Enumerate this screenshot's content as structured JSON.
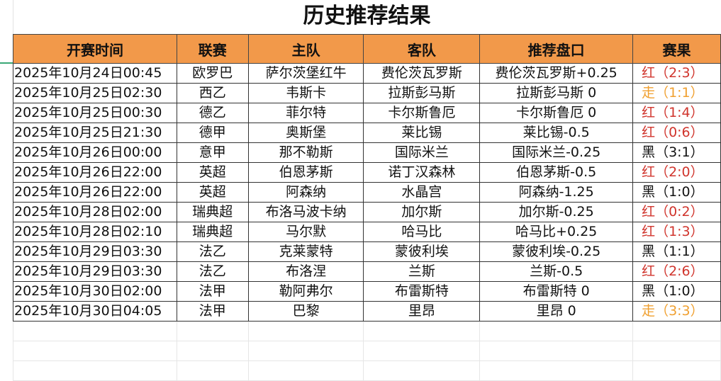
{
  "title": "历史推荐结果",
  "colors": {
    "header_bg": "#F2994A",
    "red": "#D0342C",
    "draw": "#F0A030",
    "black": "#111111"
  },
  "columns": [
    "开赛时间",
    "联赛",
    "主队",
    "客队",
    "推荐盘口",
    "赛果"
  ],
  "rows": [
    {
      "time": "2025年10月24日00:45",
      "league": "欧罗巴",
      "home": "萨尔茨堡红牛",
      "away": "费伦茨瓦罗斯",
      "pick": "费伦茨瓦罗斯+0.25",
      "result": "红（2:3）",
      "status": "red"
    },
    {
      "time": "2025年10月25日02:30",
      "league": "西乙",
      "home": "韦斯卡",
      "away": "拉斯彭马斯",
      "pick": "拉斯彭马斯 0",
      "result": "走（1:1）",
      "status": "draw"
    },
    {
      "time": "2025年10月25日00:30",
      "league": "德乙",
      "home": "菲尔特",
      "away": "卡尔斯鲁厄",
      "pick": "卡尔斯鲁厄 0",
      "result": "红（1:4）",
      "status": "red"
    },
    {
      "time": "2025年10月25日21:30",
      "league": "德甲",
      "home": "奥斯堡",
      "away": "莱比锡",
      "pick": "莱比锡-0.5",
      "result": "红（0:6）",
      "status": "red"
    },
    {
      "time": "2025年10月26日00:00",
      "league": "意甲",
      "home": "那不勒斯",
      "away": "国际米兰",
      "pick": "国际米兰-0.25",
      "result": "黑（3:1）",
      "status": "black"
    },
    {
      "time": "2025年10月26日22:00",
      "league": "英超",
      "home": "伯恩茅斯",
      "away": "诺丁汉森林",
      "pick": "伯恩茅斯-0.5",
      "result": "红（2:0）",
      "status": "red"
    },
    {
      "time": "2025年10月26日22:00",
      "league": "英超",
      "home": "阿森纳",
      "away": "水晶宫",
      "pick": "阿森纳-1.25",
      "result": "黑（1:0）",
      "status": "black"
    },
    {
      "time": "2025年10月28日02:00",
      "league": "瑞典超",
      "home": "布洛马波卡纳",
      "away": "加尔斯",
      "pick": "加尔斯-0.25",
      "result": "红（0:2）",
      "status": "red"
    },
    {
      "time": "2025年10月28日02:10",
      "league": "瑞典超",
      "home": "马尔默",
      "away": "哈马比",
      "pick": "哈马比+0.25",
      "result": "红（1:3）",
      "status": "red"
    },
    {
      "time": "2025年10月29日03:30",
      "league": "法乙",
      "home": "克莱蒙特",
      "away": "蒙彼利埃",
      "pick": "蒙彼利埃-0.25",
      "result": "黑（1:1）",
      "status": "black"
    },
    {
      "time": "2025年10月29日03:30",
      "league": "法乙",
      "home": "布洛涅",
      "away": "兰斯",
      "pick": "兰斯-0.5",
      "result": "红（2:6）",
      "status": "red"
    },
    {
      "time": "2025年10月30日02:00",
      "league": "法甲",
      "home": "勒阿弗尔",
      "away": "布雷斯特",
      "pick": "布雷斯特 0",
      "result": "黑（1:0）",
      "status": "black"
    },
    {
      "time": "2025年10月30日04:05",
      "league": "法甲",
      "home": "巴黎",
      "away": "里昂",
      "pick": "里昂 0",
      "result": "走（3:3）",
      "status": "draw"
    }
  ]
}
